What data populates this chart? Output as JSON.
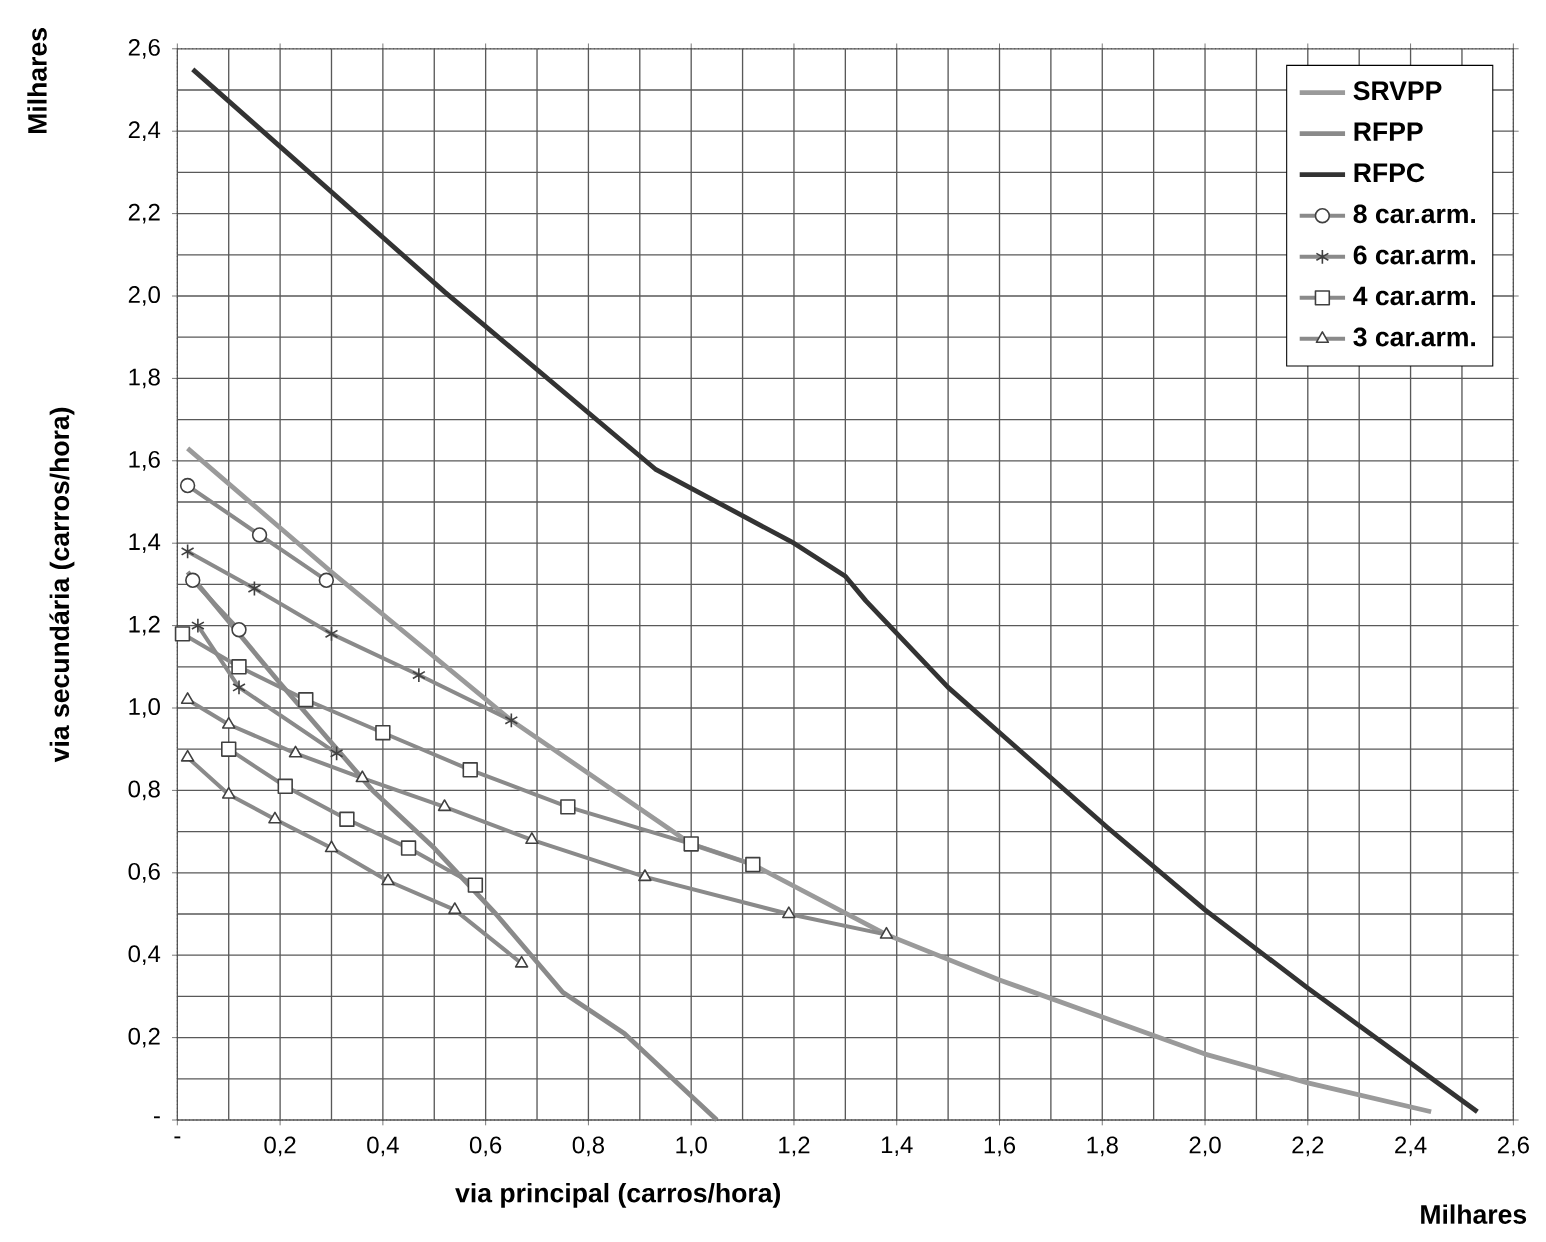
{
  "chart_data": {
    "type": "line",
    "xlabel": "via principal (carros/hora)",
    "ylabel": "via secundária (carros/hora)",
    "annotations": [
      "Milhares",
      "Milhares"
    ],
    "xlim": [
      0,
      2.6
    ],
    "ylim": [
      0,
      2.6
    ],
    "xticks": [
      {
        "value": 0,
        "label": "-"
      },
      {
        "value": 0.2,
        "label": "0,2"
      },
      {
        "value": 0.4,
        "label": "0,4"
      },
      {
        "value": 0.6,
        "label": "0,6"
      },
      {
        "value": 0.8,
        "label": "0,8"
      },
      {
        "value": 1.0,
        "label": "1,0"
      },
      {
        "value": 1.2,
        "label": "1,2"
      },
      {
        "value": 1.4,
        "label": "1,4"
      },
      {
        "value": 1.6,
        "label": "1,6"
      },
      {
        "value": 1.8,
        "label": "1,8"
      },
      {
        "value": 2.0,
        "label": "2,0"
      },
      {
        "value": 2.2,
        "label": "2,2"
      },
      {
        "value": 2.4,
        "label": "2,4"
      },
      {
        "value": 2.6,
        "label": "2,6"
      }
    ],
    "yticks": [
      {
        "value": 0,
        "label": "-"
      },
      {
        "value": 0.2,
        "label": "0,2"
      },
      {
        "value": 0.4,
        "label": "0,4"
      },
      {
        "value": 0.6,
        "label": "0,6"
      },
      {
        "value": 0.8,
        "label": "0,8"
      },
      {
        "value": 1.0,
        "label": "1,0"
      },
      {
        "value": 1.2,
        "label": "1,2"
      },
      {
        "value": 1.4,
        "label": "1,4"
      },
      {
        "value": 1.6,
        "label": "1,6"
      },
      {
        "value": 1.8,
        "label": "1,8"
      },
      {
        "value": 2.0,
        "label": "2,0"
      },
      {
        "value": 2.2,
        "label": "2,2"
      },
      {
        "value": 2.4,
        "label": "2,4"
      },
      {
        "value": 2.6,
        "label": "2,6"
      }
    ],
    "grid": true,
    "legend": "top right",
    "line_style": "solid",
    "series": [
      {
        "name": "SRVPP",
        "color": "#9a9a9a",
        "marker": "none",
        "x": [
          0.02,
          0.3,
          0.65,
          1.0,
          1.12,
          1.38,
          1.6,
          2.0,
          2.2,
          2.44
        ],
        "values": [
          1.63,
          1.33,
          0.97,
          0.67,
          0.62,
          0.45,
          0.34,
          0.16,
          0.09,
          0.02
        ]
      },
      {
        "name": "RFPP",
        "color": "#8a8a8a",
        "marker": "none",
        "x": [
          0.02,
          0.2,
          0.38,
          0.5,
          0.62,
          0.75,
          0.87,
          1.05
        ],
        "values": [
          1.33,
          1.06,
          0.8,
          0.66,
          0.5,
          0.31,
          0.21,
          0.0
        ]
      },
      {
        "name": "RFPC",
        "color": "#333333",
        "marker": "none",
        "x": [
          0.03,
          0.52,
          0.93,
          1.2,
          1.3,
          1.34,
          1.5,
          1.81,
          2.0,
          2.2,
          2.53
        ],
        "values": [
          2.55,
          2.01,
          1.58,
          1.4,
          1.32,
          1.26,
          1.05,
          0.71,
          0.51,
          0.32,
          0.02
        ]
      },
      {
        "name": "8 car.arm.",
        "color": "#8a8a8a",
        "marker": "circle",
        "x": [
          0.02,
          0.16,
          0.29,
          null,
          0.03,
          0.12
        ],
        "values": [
          1.54,
          1.42,
          1.31,
          null,
          1.31,
          1.19
        ]
      },
      {
        "name": "6 car.arm.",
        "color": "#8a8a8a",
        "marker": "cross",
        "x": [
          0.02,
          0.15,
          0.3,
          0.47,
          0.65,
          null,
          0.04,
          0.12,
          0.31
        ],
        "values": [
          1.38,
          1.29,
          1.18,
          1.08,
          0.97,
          null,
          1.2,
          1.05,
          0.89
        ]
      },
      {
        "name": "4 car.arm.",
        "color": "#8a8a8a",
        "marker": "square",
        "x": [
          0.01,
          0.12,
          0.25,
          0.4,
          0.57,
          0.76,
          1.0,
          1.12,
          null,
          0.1,
          0.21,
          0.33,
          0.45,
          0.58
        ],
        "values": [
          1.18,
          1.1,
          1.02,
          0.94,
          0.85,
          0.76,
          0.67,
          0.62,
          null,
          0.9,
          0.81,
          0.73,
          0.66,
          0.57
        ]
      },
      {
        "name": "3 car.arm.",
        "color": "#8a8a8a",
        "marker": "triangle",
        "x": [
          0.02,
          0.1,
          0.23,
          0.36,
          0.52,
          0.69,
          0.91,
          1.19,
          1.38,
          null,
          0.02,
          0.1,
          0.19,
          0.3,
          0.41,
          0.54,
          0.67
        ],
        "values": [
          1.02,
          0.96,
          0.89,
          0.83,
          0.76,
          0.68,
          0.59,
          0.5,
          0.45,
          null,
          0.88,
          0.79,
          0.73,
          0.66,
          0.58,
          0.51,
          0.38
        ]
      }
    ]
  }
}
